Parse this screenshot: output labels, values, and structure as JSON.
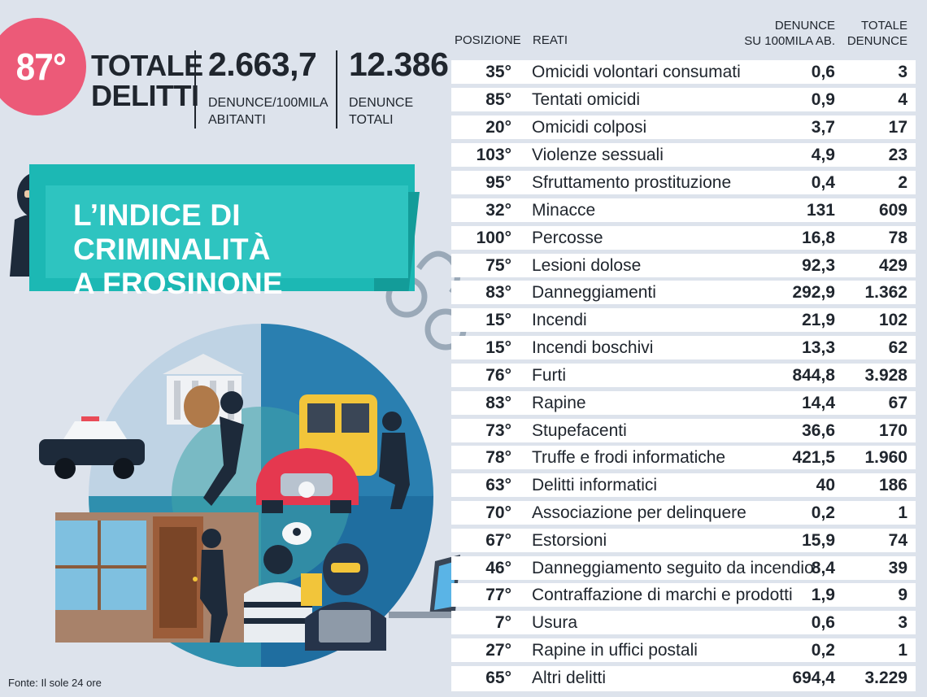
{
  "summary": {
    "rank": "87°",
    "title_line1": "TOTALE",
    "title_line2": "DELITTI",
    "rate_value": "2.663,7",
    "rate_label_line1": "DENUNCE/100MILA",
    "rate_label_line2": "ABITANTI",
    "total_value": "12.386",
    "total_label_line1": "DENUNCE",
    "total_label_line2": "TOTALI"
  },
  "banner": {
    "line1": "L’INDICE DI CRIMINALITÀ",
    "line2": "A FROSINONE"
  },
  "table": {
    "headers": {
      "position": "POSIZIONE",
      "crime": "REATI",
      "rate_line1": "DENUNCE",
      "rate_line2": "SU 100MILA AB.",
      "total_line1": "TOTALE",
      "total_line2": "DENUNCE"
    },
    "rows": [
      {
        "pos": "35°",
        "crime": "Omicidi volontari consumati",
        "rate": "0,6",
        "total": "3"
      },
      {
        "pos": "85°",
        "crime": "Tentati omicidi",
        "rate": "0,9",
        "total": "4"
      },
      {
        "pos": "20°",
        "crime": "Omicidi colposi",
        "rate": "3,7",
        "total": "17"
      },
      {
        "pos": "103°",
        "crime": "Violenze sessuali",
        "rate": "4,9",
        "total": "23"
      },
      {
        "pos": "95°",
        "crime": "Sfruttamento prostituzione",
        "rate": "0,4",
        "total": "2"
      },
      {
        "pos": "32°",
        "crime": "Minacce",
        "rate": "131",
        "total": "609"
      },
      {
        "pos": "100°",
        "crime": "Percosse",
        "rate": "16,8",
        "total": "78"
      },
      {
        "pos": "75°",
        "crime": "Lesioni dolose",
        "rate": "92,3",
        "total": "429"
      },
      {
        "pos": "83°",
        "crime": "Danneggiamenti",
        "rate": "292,9",
        "total": "1.362"
      },
      {
        "pos": "15°",
        "crime": "Incendi",
        "rate": "21,9",
        "total": "102"
      },
      {
        "pos": "15°",
        "crime": "Incendi boschivi",
        "rate": "13,3",
        "total": "62"
      },
      {
        "pos": "76°",
        "crime": "Furti",
        "rate": "844,8",
        "total": "3.928"
      },
      {
        "pos": "83°",
        "crime": "Rapine",
        "rate": "14,4",
        "total": "67"
      },
      {
        "pos": "73°",
        "crime": "Stupefacenti",
        "rate": "36,6",
        "total": "170"
      },
      {
        "pos": "78°",
        "crime": "Truffe e frodi informatiche",
        "rate": "421,5",
        "total": "1.960"
      },
      {
        "pos": "63°",
        "crime": "Delitti informatici",
        "rate": "40",
        "total": "186"
      },
      {
        "pos": "70°",
        "crime": "Associazione per delinquere",
        "rate": "0,2",
        "total": "1"
      },
      {
        "pos": "67°",
        "crime": "Estorsioni",
        "rate": "15,9",
        "total": "74"
      },
      {
        "pos": "46°",
        "crime": "Danneggiamento seguito da incendio",
        "rate": "8,4",
        "total": "39"
      },
      {
        "pos": "77°",
        "crime": "Contraffazione di marchi e prodotti",
        "rate": "1,9",
        "total": "9"
      },
      {
        "pos": "7°",
        "crime": "Usura",
        "rate": "0,6",
        "total": "3"
      },
      {
        "pos": "27°",
        "crime": "Rapine in uffici postali",
        "rate": "0,2",
        "total": "1"
      },
      {
        "pos": "65°",
        "crime": "Altri delitti",
        "rate": "694,4",
        "total": "3.229"
      }
    ]
  },
  "source": "Fonte: Il sole 24 ore",
  "colors": {
    "background": "#dde3ec",
    "accent_pink": "#ec5a78",
    "teal": "#2ec4c0",
    "row_white": "#ffffff"
  }
}
